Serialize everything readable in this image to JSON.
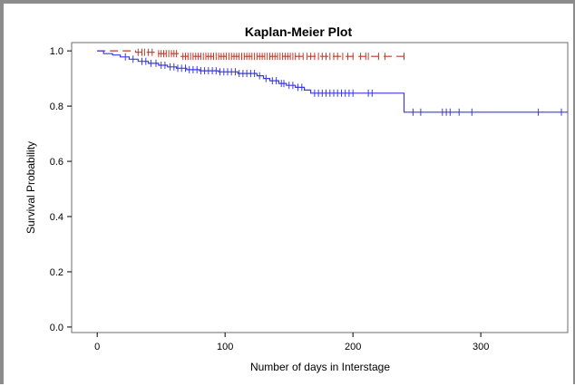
{
  "chart_data": {
    "type": "line",
    "title": "Kaplan-Meier Plot",
    "xlabel": "Number of days in Interstage",
    "ylabel": "Survival Probability",
    "xlim": [
      -20,
      368
    ],
    "ylim": [
      -0.02,
      1.03
    ],
    "xticks": [
      0,
      100,
      200,
      300
    ],
    "yticks": [
      "0.0",
      "0.2",
      "0.4",
      "0.6",
      "0.8",
      "1.0"
    ],
    "grid": false,
    "series": [
      {
        "color": "#c0392b",
        "dash": "9,5",
        "step_x": [
          0,
          30,
          45,
          65,
          242
        ],
        "step_y": [
          1.0,
          0.995,
          0.99,
          0.98,
          0.98
        ],
        "censor_x": [
          32,
          35,
          37,
          40,
          43,
          48,
          50,
          52,
          54,
          56,
          58,
          60,
          62,
          67,
          69,
          71,
          73,
          75,
          77,
          79,
          81,
          83,
          85,
          87,
          89,
          91,
          93,
          95,
          97,
          99,
          101,
          103,
          105,
          107,
          109,
          111,
          113,
          115,
          117,
          119,
          121,
          123,
          125,
          127,
          129,
          131,
          133,
          135,
          137,
          139,
          141,
          143,
          145,
          147,
          149,
          151,
          153,
          155,
          158,
          161,
          164,
          167,
          170,
          173,
          176,
          179,
          182,
          185,
          188,
          192,
          196,
          200,
          206,
          210,
          212,
          220,
          225,
          240
        ]
      },
      {
        "color": "#3a3ae0",
        "dash": "",
        "step_x": [
          0,
          5,
          12,
          18,
          25,
          32,
          40,
          48,
          55,
          62,
          70,
          80,
          95,
          110,
          125,
          130,
          135,
          142,
          148,
          155,
          162,
          167,
          240,
          368
        ],
        "step_y": [
          1.0,
          0.99,
          0.985,
          0.978,
          0.97,
          0.962,
          0.955,
          0.948,
          0.942,
          0.937,
          0.932,
          0.928,
          0.924,
          0.918,
          0.91,
          0.9,
          0.892,
          0.882,
          0.875,
          0.868,
          0.858,
          0.847,
          0.778,
          0.778
        ],
        "censor_x": [
          22,
          28,
          35,
          38,
          42,
          46,
          50,
          53,
          57,
          60,
          63,
          66,
          69,
          72,
          75,
          78,
          81,
          84,
          87,
          90,
          93,
          96,
          99,
          102,
          105,
          108,
          111,
          114,
          117,
          120,
          123,
          127,
          132,
          137,
          140,
          144,
          146,
          150,
          153,
          157,
          160,
          170,
          173,
          176,
          179,
          182,
          185,
          188,
          191,
          194,
          197,
          200,
          212,
          215,
          247,
          253,
          270,
          273,
          276,
          283,
          293,
          345,
          363
        ]
      }
    ]
  }
}
